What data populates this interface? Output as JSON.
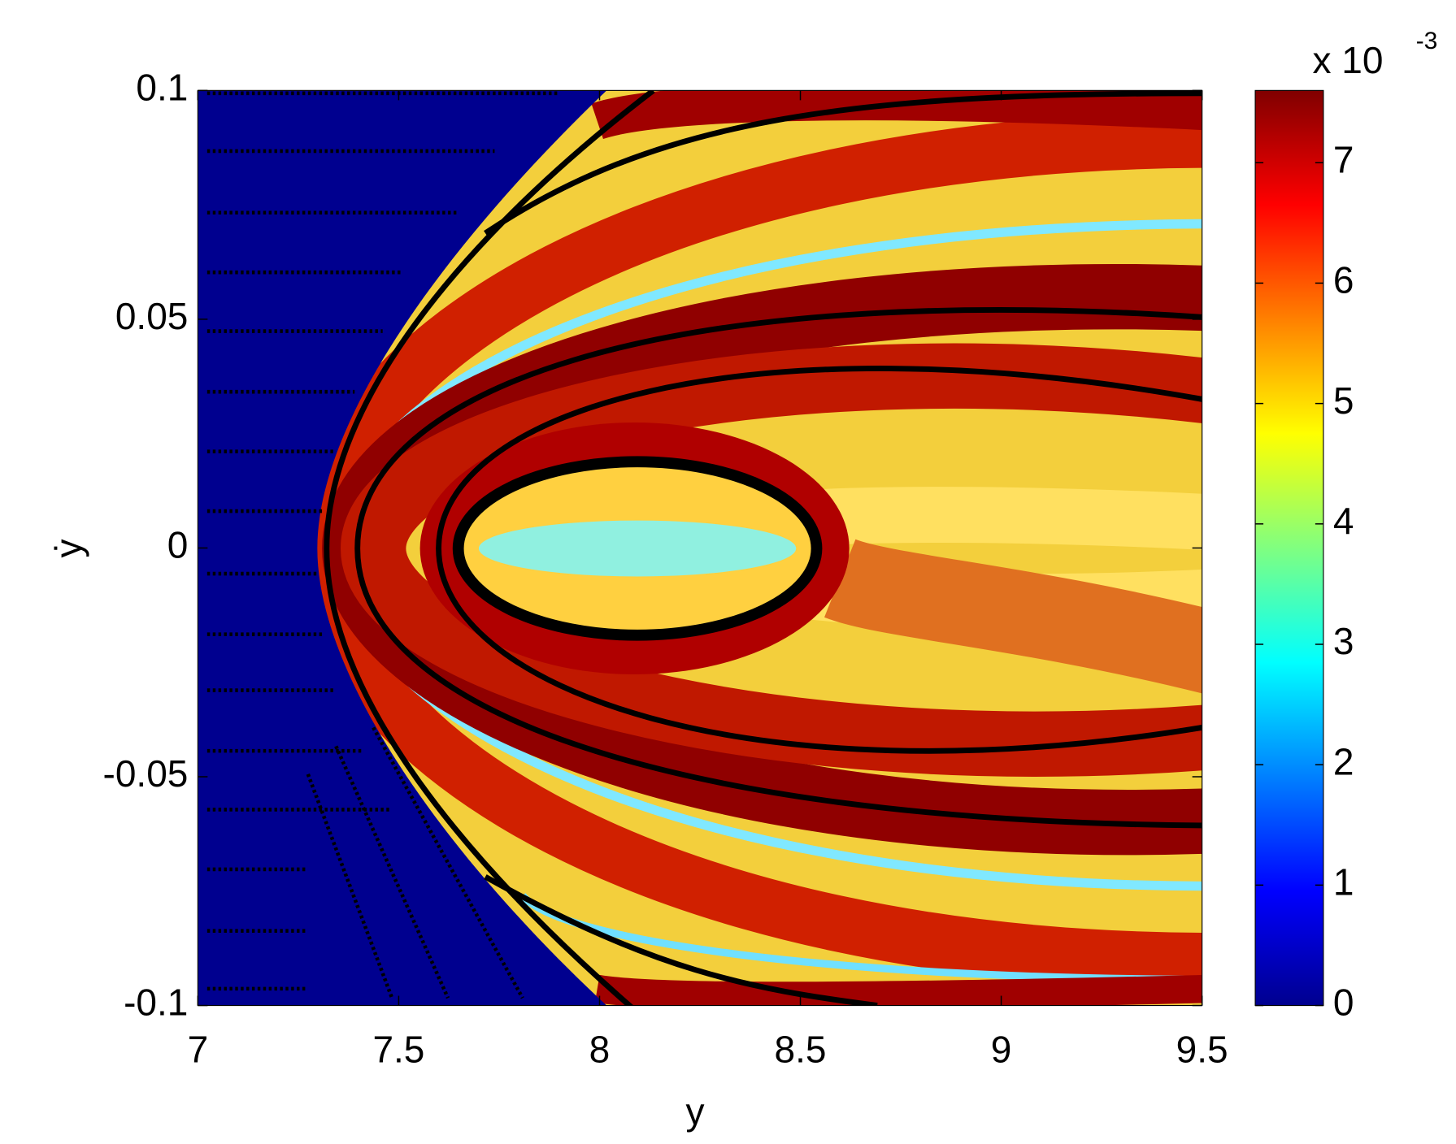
{
  "chart_data": {
    "type": "heatmap",
    "x_label": "y",
    "y_label": "ẏ",
    "xlim": [
      7,
      9.5
    ],
    "xticks": [
      7,
      7.5,
      8,
      8.5,
      9,
      9.5
    ],
    "ylim": [
      -0.1,
      0.1
    ],
    "yticks": [
      -0.1,
      -0.05,
      0,
      0.05,
      0.1
    ],
    "colorbar": {
      "clim": [
        0,
        7.6
      ],
      "ticks": [
        0,
        1,
        2,
        3,
        4,
        5,
        6,
        7
      ],
      "multiplier": "x 10",
      "exponent": "-3",
      "colormap": [
        "#00008f",
        "#0000ff",
        "#0080ff",
        "#00ffff",
        "#80ff80",
        "#ffff00",
        "#ff8000",
        "#ff0000",
        "#800000"
      ]
    }
  }
}
